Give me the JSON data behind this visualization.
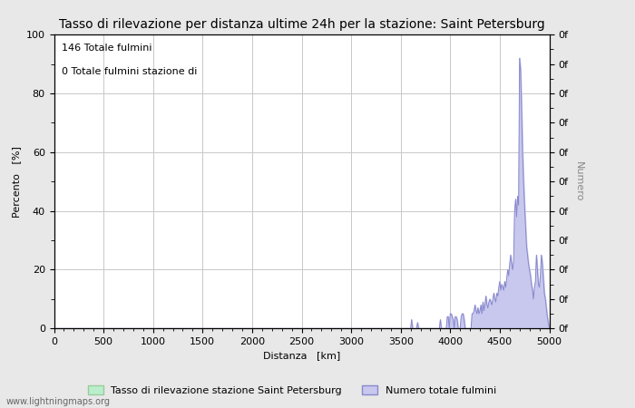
{
  "title": "Tasso di rilevazione per distanza ultime 24h per la stazione: Saint Petersburg",
  "xlabel": "Distanza   [km]",
  "ylabel_left": "Percento   [%]",
  "ylabel_right": "Numero",
  "annotation_line1": "146 Totale fulmini",
  "annotation_line2": "0 Totale fulmini stazione di",
  "xlim": [
    0,
    5000
  ],
  "ylim": [
    0,
    100
  ],
  "x_ticks": [
    0,
    500,
    1000,
    1500,
    2000,
    2500,
    3000,
    3500,
    4000,
    4500,
    5000
  ],
  "y_ticks_left": [
    0,
    20,
    40,
    60,
    80,
    100
  ],
  "y_ticks_right_pos": [
    0,
    10,
    20,
    30,
    40,
    50,
    60,
    70,
    80,
    90,
    100
  ],
  "bg_color": "#e8e8e8",
  "plot_bg_color": "#ffffff",
  "grid_color": "#c8c8c8",
  "line_color": "#8888cc",
  "fill_color": "#c8c8ee",
  "legend_green_label": "Tasso di rilevazione stazione Saint Petersburg",
  "legend_blue_label": "Numero totale fulmini",
  "watermark": "www.lightningmaps.org",
  "title_fontsize": 10,
  "axis_fontsize": 8,
  "tick_fontsize": 8,
  "annotation_fontsize": 8,
  "data_x": [
    0,
    3580,
    3590,
    3600,
    3610,
    3620,
    3630,
    3640,
    3650,
    3660,
    3670,
    3680,
    3690,
    3700,
    3710,
    3720,
    3730,
    3740,
    3750,
    3760,
    3780,
    3800,
    3820,
    3850,
    3870,
    3880,
    3890,
    3900,
    3910,
    3920,
    3940,
    3950,
    3960,
    3970,
    3980,
    3990,
    4000,
    4010,
    4020,
    4030,
    4040,
    4050,
    4060,
    4070,
    4080,
    4090,
    4100,
    4110,
    4120,
    4130,
    4140,
    4150,
    4160,
    4170,
    4180,
    4190,
    4200,
    4210,
    4220,
    4230,
    4240,
    4250,
    4260,
    4270,
    4280,
    4290,
    4300,
    4310,
    4320,
    4330,
    4340,
    4350,
    4360,
    4370,
    4380,
    4390,
    4400,
    4410,
    4420,
    4430,
    4440,
    4450,
    4460,
    4470,
    4480,
    4490,
    4500,
    4510,
    4520,
    4530,
    4540,
    4550,
    4560,
    4570,
    4580,
    4590,
    4600,
    4610,
    4620,
    4630,
    4640,
    4650,
    4660,
    4670,
    4680,
    4690,
    4700,
    4710,
    4720,
    4730,
    4740,
    4750,
    4760,
    4770,
    4780,
    4790,
    4800,
    4810,
    4820,
    4830,
    4840,
    4850,
    4860,
    4870,
    4880,
    4890,
    4900,
    4910,
    4920,
    4930,
    4940,
    4950,
    4960,
    4970,
    4980,
    4990,
    5000
  ],
  "data_y": [
    0,
    0,
    0,
    0,
    3,
    0,
    0,
    0,
    0,
    0,
    2,
    0,
    0,
    0,
    0,
    0,
    0,
    0,
    0,
    0,
    0,
    0,
    0,
    0,
    0,
    0,
    0,
    3,
    0,
    0,
    0,
    0,
    0,
    4,
    4,
    0,
    5,
    5,
    4,
    3,
    0,
    4,
    4,
    3,
    0,
    0,
    0,
    4,
    5,
    5,
    3,
    0,
    0,
    0,
    0,
    0,
    0,
    0,
    5,
    5,
    6,
    8,
    6,
    5,
    7,
    5,
    6,
    8,
    5,
    9,
    6,
    8,
    11,
    8,
    7,
    9,
    10,
    9,
    8,
    10,
    12,
    10,
    9,
    12,
    11,
    14,
    16,
    13,
    15,
    14,
    13,
    16,
    14,
    17,
    20,
    18,
    22,
    25,
    22,
    20,
    23,
    40,
    44,
    38,
    45,
    42,
    92,
    88,
    75,
    60,
    50,
    42,
    35,
    28,
    25,
    22,
    20,
    18,
    15,
    13,
    10,
    14,
    16,
    25,
    20,
    15,
    14,
    18,
    25,
    22,
    17,
    12,
    10,
    7,
    4,
    2,
    0
  ]
}
